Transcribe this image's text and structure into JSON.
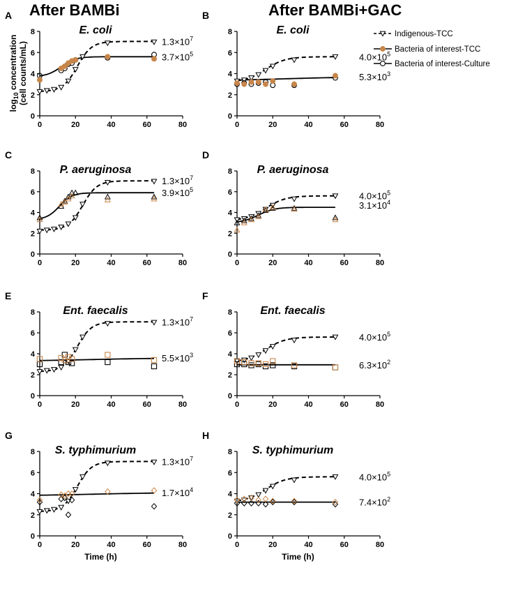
{
  "column_titles": [
    "After BAMBi",
    "After BAMBi+GAC"
  ],
  "ylabel_line1": "log",
  "ylabel_sub": "10",
  "ylabel_rest": " concentration",
  "ylabel_line2": "(cell counts/mL)",
  "xlabel": "Time (h)",
  "legend": [
    {
      "label": "Indigenous-TCC",
      "color": "#000000",
      "style": "dashed",
      "marker": "triangle-down-open"
    },
    {
      "label": "Bacteria of interest-TCC",
      "color": "#c8864a",
      "style": "solid",
      "marker": "circle-orange"
    },
    {
      "label": "Bacteria of interest-Culture",
      "color": "#000000",
      "style": "solid",
      "marker": "circle-open"
    }
  ],
  "chart_data": [
    {
      "panel": "A",
      "title": "E. coli",
      "type": "scatter",
      "xlim": [
        0,
        80
      ],
      "ylim": [
        0,
        8
      ],
      "xticks": [
        0,
        20,
        40,
        60,
        80
      ],
      "yticks": [
        0,
        2,
        4,
        6,
        8
      ],
      "marker": "circle",
      "indigenous": {
        "x": [
          0,
          4,
          8,
          12,
          16,
          20,
          24,
          38,
          64
        ],
        "y": [
          2.3,
          2.4,
          2.5,
          2.7,
          3.3,
          4.4,
          5.6,
          6.9,
          7.0
        ]
      },
      "indigenous_fit": {
        "low": 2.3,
        "high": 7.05,
        "mid": 21,
        "k": 0.25,
        "xmax": 64
      },
      "tcc": {
        "x": [
          0,
          12,
          14,
          16,
          18,
          20,
          38,
          64
        ],
        "y": [
          3.4,
          4.5,
          4.7,
          5.0,
          5.2,
          5.3,
          5.6,
          5.4
        ]
      },
      "culture": {
        "x": [
          0,
          12,
          14,
          16,
          18,
          20,
          38,
          64
        ],
        "y": [
          3.8,
          4.3,
          4.5,
          4.9,
          5.0,
          5.3,
          5.5,
          5.8
        ]
      },
      "main_fit": {
        "low": 3.7,
        "high": 5.6,
        "mid": 12,
        "k": 0.25,
        "xmax": 64
      },
      "annot_top": {
        "base": "1.3×10",
        "exp": "7"
      },
      "annot_bottom": {
        "base": "3.7×10",
        "exp": "5"
      }
    },
    {
      "panel": "B",
      "title": "E. coli",
      "type": "scatter",
      "xlim": [
        0,
        80
      ],
      "ylim": [
        0,
        8
      ],
      "xticks": [
        0,
        20,
        40,
        60,
        80
      ],
      "yticks": [
        0,
        2,
        4,
        6,
        8
      ],
      "marker": "circle",
      "indigenous": {
        "x": [
          0,
          4,
          8,
          12,
          16,
          20,
          32,
          55
        ],
        "y": [
          3.3,
          3.4,
          3.6,
          3.9,
          4.3,
          4.7,
          5.3,
          5.6
        ]
      },
      "indigenous_fit": {
        "low": 3.2,
        "high": 5.6,
        "mid": 16,
        "k": 0.18,
        "xmax": 55
      },
      "tcc": {
        "x": [
          0,
          4,
          8,
          12,
          16,
          20,
          32,
          55
        ],
        "y": [
          3.1,
          3.0,
          3.2,
          3.2,
          3.0,
          3.3,
          3.0,
          3.8
        ]
      },
      "culture": {
        "x": [
          0,
          4,
          8,
          12,
          16,
          20,
          32,
          55
        ],
        "y": [
          3.0,
          3.1,
          3.0,
          3.1,
          3.2,
          2.9,
          2.9,
          3.6
        ]
      },
      "main_fit": {
        "low": 3.3,
        "high": 3.7,
        "mid": 25,
        "k": 0.05,
        "xmax": 55
      },
      "annot_top": {
        "base": "4.0×10",
        "exp": "5"
      },
      "annot_bottom": {
        "base": "5.3×10",
        "exp": "3"
      }
    },
    {
      "panel": "C",
      "title": "P. aeruginosa",
      "type": "scatter",
      "xlim": [
        0,
        80
      ],
      "ylim": [
        0,
        8
      ],
      "xticks": [
        0,
        20,
        40,
        60,
        80
      ],
      "yticks": [
        0,
        2,
        4,
        6,
        8
      ],
      "marker": "triangle",
      "indigenous": {
        "x": [
          0,
          4,
          8,
          12,
          16,
          20,
          24,
          38,
          64
        ],
        "y": [
          2.2,
          2.3,
          2.4,
          2.6,
          2.9,
          3.5,
          4.8,
          6.9,
          7.0
        ]
      },
      "indigenous_fit": {
        "low": 2.3,
        "high": 7.05,
        "mid": 24,
        "k": 0.25,
        "xmax": 64
      },
      "tcc": {
        "x": [
          0,
          12,
          14,
          16,
          18,
          38,
          64
        ],
        "y": [
          3.3,
          4.8,
          5.0,
          5.3,
          5.6,
          5.2,
          5.3
        ]
      },
      "culture": {
        "x": [
          0,
          12,
          14,
          16,
          18,
          20,
          38,
          64
        ],
        "y": [
          3.5,
          4.6,
          5.1,
          5.5,
          5.9,
          5.9,
          5.5,
          5.5
        ]
      },
      "main_fit": {
        "low": 3.3,
        "high": 5.9,
        "mid": 11,
        "k": 0.28,
        "xmax": 64
      },
      "annot_top": {
        "base": "1.3×10",
        "exp": "7"
      },
      "annot_bottom": {
        "base": "3.9×10",
        "exp": "5"
      }
    },
    {
      "panel": "D",
      "title": "P. aeruginosa",
      "type": "scatter",
      "xlim": [
        0,
        80
      ],
      "ylim": [
        0,
        8
      ],
      "xticks": [
        0,
        20,
        40,
        60,
        80
      ],
      "yticks": [
        0,
        2,
        4,
        6,
        8
      ],
      "marker": "triangle",
      "indigenous": {
        "x": [
          0,
          4,
          8,
          12,
          16,
          20,
          32,
          55
        ],
        "y": [
          3.3,
          3.4,
          3.6,
          3.9,
          4.3,
          4.7,
          5.3,
          5.6
        ]
      },
      "indigenous_fit": {
        "low": 3.2,
        "high": 5.6,
        "mid": 16,
        "k": 0.18,
        "xmax": 55
      },
      "tcc": {
        "x": [
          0,
          4,
          8,
          12,
          16,
          20,
          32,
          55
        ],
        "y": [
          2.3,
          3.0,
          3.3,
          3.6,
          4.3,
          4.5,
          4.3,
          3.3
        ]
      },
      "culture": {
        "x": [
          0,
          4,
          8,
          12,
          16,
          20,
          32,
          55
        ],
        "y": [
          3.0,
          3.2,
          3.4,
          3.7,
          4.2,
          4.4,
          4.4,
          3.5
        ]
      },
      "main_fit": {
        "low": 3.0,
        "high": 4.5,
        "mid": 12,
        "k": 0.22,
        "xmax": 55
      },
      "annot_top": {
        "base": "4.0×10",
        "exp": "5"
      },
      "annot_bottom": {
        "base": "3.1×10",
        "exp": "4"
      }
    },
    {
      "panel": "E",
      "title": "Ent. faecalis",
      "type": "scatter",
      "xlim": [
        0,
        80
      ],
      "ylim": [
        0,
        8
      ],
      "xticks": [
        0,
        20,
        40,
        60,
        80
      ],
      "yticks": [
        0,
        2,
        4,
        6,
        8
      ],
      "marker": "square",
      "indigenous": {
        "x": [
          0,
          4,
          8,
          12,
          16,
          20,
          24,
          38,
          64
        ],
        "y": [
          2.3,
          2.4,
          2.5,
          2.7,
          3.3,
          4.4,
          5.6,
          6.9,
          7.0
        ]
      },
      "indigenous_fit": {
        "low": 2.3,
        "high": 7.05,
        "mid": 21,
        "k": 0.25,
        "xmax": 64
      },
      "tcc": {
        "x": [
          0,
          12,
          14,
          16,
          18,
          38,
          64
        ],
        "y": [
          3.5,
          3.6,
          3.4,
          3.7,
          3.5,
          3.9,
          3.4
        ]
      },
      "culture": {
        "x": [
          0,
          12,
          14,
          16,
          18,
          38,
          64
        ],
        "y": [
          3.0,
          3.2,
          3.9,
          3.2,
          3.1,
          3.2,
          2.8
        ]
      },
      "main_fit": {
        "low": 3.3,
        "high": 3.6,
        "mid": 30,
        "k": 0.05,
        "xmax": 64
      },
      "annot_top": {
        "base": "1.3×10",
        "exp": "7"
      },
      "annot_bottom": {
        "base": "5.5×10",
        "exp": "3"
      }
    },
    {
      "panel": "F",
      "title": "Ent. faecalis",
      "type": "scatter",
      "xlim": [
        0,
        80
      ],
      "ylim": [
        0,
        8
      ],
      "xticks": [
        0,
        20,
        40,
        60,
        80
      ],
      "yticks": [
        0,
        2,
        4,
        6,
        8
      ],
      "marker": "square",
      "indigenous": {
        "x": [
          0,
          4,
          8,
          12,
          16,
          20,
          32,
          55
        ],
        "y": [
          3.3,
          3.4,
          3.6,
          3.9,
          4.3,
          4.7,
          5.3,
          5.6
        ]
      },
      "indigenous_fit": {
        "low": 3.2,
        "high": 5.6,
        "mid": 16,
        "k": 0.18,
        "xmax": 55
      },
      "tcc": {
        "x": [
          0,
          4,
          8,
          12,
          16,
          20,
          32,
          55
        ],
        "y": [
          3.3,
          3.2,
          3.1,
          3.1,
          3.0,
          3.3,
          2.9,
          2.7
        ]
      },
      "culture": {
        "x": [
          0,
          4,
          8,
          12,
          16,
          20,
          32,
          55
        ],
        "y": [
          3.0,
          3.0,
          2.9,
          3.0,
          2.8,
          2.9,
          2.8,
          2.7
        ]
      },
      "main_fit": {
        "low": 2.95,
        "high": 2.95,
        "mid": 25,
        "k": 0.05,
        "xmax": 55
      },
      "annot_top": {
        "base": "4.0×10",
        "exp": "5"
      },
      "annot_bottom": {
        "base": "6.3×10",
        "exp": "2"
      }
    },
    {
      "panel": "G",
      "title": "S. typhimurium",
      "type": "scatter",
      "xlim": [
        0,
        80
      ],
      "ylim": [
        0,
        8
      ],
      "xticks": [
        0,
        20,
        40,
        60,
        80
      ],
      "yticks": [
        0,
        2,
        4,
        6,
        8
      ],
      "marker": "diamond",
      "indigenous": {
        "x": [
          0,
          4,
          8,
          12,
          16,
          20,
          24,
          38,
          64
        ],
        "y": [
          2.3,
          2.4,
          2.5,
          2.7,
          3.3,
          4.4,
          5.6,
          6.9,
          7.0
        ]
      },
      "indigenous_fit": {
        "low": 2.3,
        "high": 7.05,
        "mid": 21,
        "k": 0.25,
        "xmax": 64
      },
      "tcc": {
        "x": [
          0,
          12,
          14,
          16,
          18,
          38,
          64
        ],
        "y": [
          3.4,
          3.9,
          3.8,
          4.0,
          4.0,
          4.2,
          4.3
        ]
      },
      "culture": {
        "x": [
          0,
          12,
          14,
          16,
          18,
          64
        ],
        "y": [
          3.2,
          3.5,
          3.6,
          2.0,
          3.4,
          2.8
        ]
      },
      "main_fit": {
        "low": 3.8,
        "high": 4.1,
        "mid": 30,
        "k": 0.05,
        "xmax": 64
      },
      "annot_top": {
        "base": "1.3×10",
        "exp": "7"
      },
      "annot_bottom": {
        "base": "1.7×10",
        "exp": "4"
      }
    },
    {
      "panel": "H",
      "title": "S. typhimurium",
      "type": "scatter",
      "xlim": [
        0,
        80
      ],
      "ylim": [
        0,
        8
      ],
      "xticks": [
        0,
        20,
        40,
        60,
        80
      ],
      "yticks": [
        0,
        2,
        4,
        6,
        8
      ],
      "marker": "diamond",
      "indigenous": {
        "x": [
          0,
          4,
          8,
          12,
          16,
          20,
          32,
          55
        ],
        "y": [
          3.3,
          3.4,
          3.6,
          3.9,
          4.3,
          4.7,
          5.3,
          5.6
        ]
      },
      "indigenous_fit": {
        "low": 3.2,
        "high": 5.6,
        "mid": 16,
        "k": 0.18,
        "xmax": 55
      },
      "tcc": {
        "x": [
          0,
          4,
          8,
          12,
          16,
          20,
          32,
          55
        ],
        "y": [
          3.4,
          3.5,
          3.6,
          3.4,
          3.5,
          3.3,
          3.3,
          3.2
        ]
      },
      "culture": {
        "x": [
          0,
          4,
          8,
          12,
          16,
          20,
          32,
          55
        ],
        "y": [
          3.1,
          3.1,
          3.1,
          3.1,
          3.0,
          3.2,
          3.2,
          3.0
        ]
      },
      "main_fit": {
        "low": 3.2,
        "high": 3.2,
        "mid": 25,
        "k": 0.05,
        "xmax": 55
      },
      "annot_top": {
        "base": "4.0×10",
        "exp": "5"
      },
      "annot_bottom": {
        "base": "7.4×10",
        "exp": "2"
      }
    }
  ]
}
